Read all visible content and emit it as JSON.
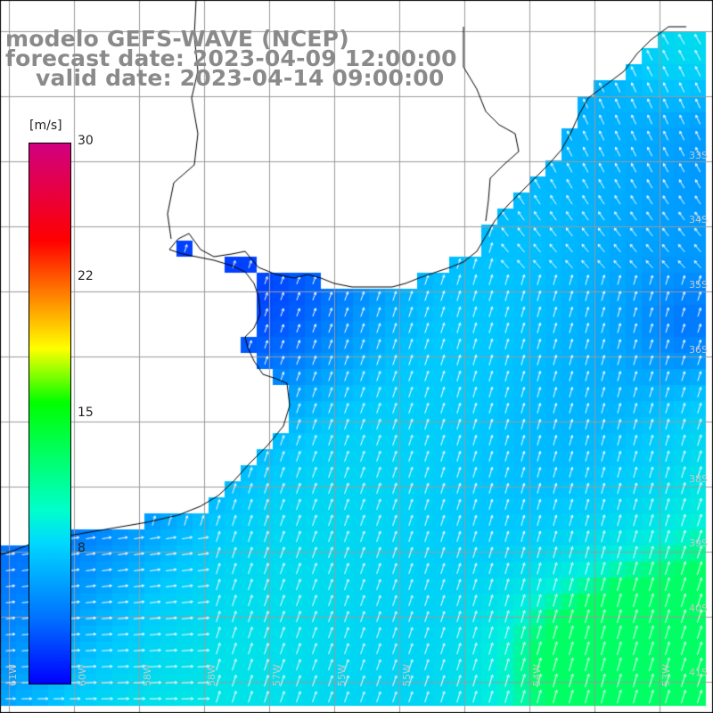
{
  "header": {
    "model": "modelo GEFS-WAVE (NCEP)",
    "forecast": "forecast date: 2023-04-09 12:00:00",
    "valid": "valid date: 2023-04-14 09:00:00"
  },
  "colorbar": {
    "unit": "[m/s]",
    "ticks": [
      "30",
      "22",
      "15",
      "8"
    ],
    "colors": [
      "#0000ff",
      "#0070ff",
      "#00d8ff",
      "#00ffcc",
      "#00ff00",
      "#ffff00",
      "#ff8000",
      "#ff0000",
      "#d00080"
    ]
  },
  "map": {
    "lat_labels": [
      "33S",
      "34S",
      "35S",
      "36S",
      "38S",
      "39S",
      "40S",
      "41S"
    ],
    "lon_labels": [
      "61W",
      "60W",
      "58W",
      "58W",
      "57W",
      "55W",
      "55W",
      "54W",
      "53W"
    ],
    "land_color": "#ffffff",
    "grid_color": "#9a9a9a",
    "coast_color": "#000000"
  }
}
